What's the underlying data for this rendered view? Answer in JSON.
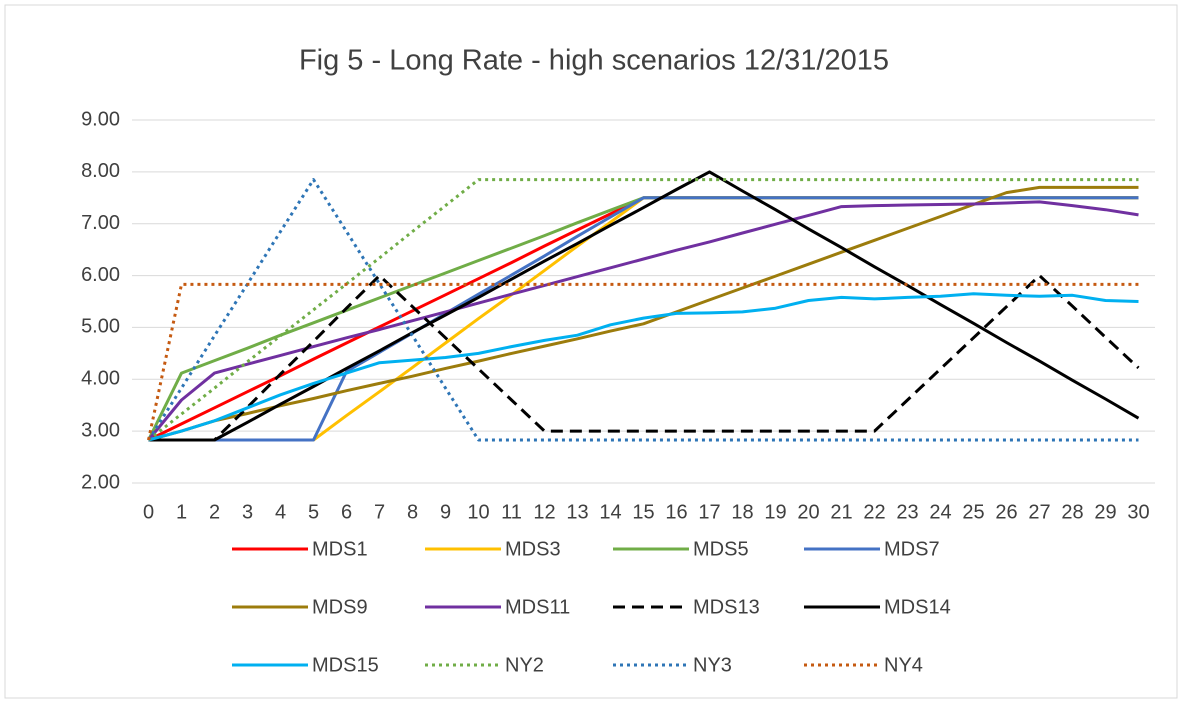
{
  "chart_data": {
    "type": "line",
    "title": "Fig 5 - Long Rate - high scenarios 12/31/2015",
    "categories": [
      "0",
      "1",
      "2",
      "3",
      "4",
      "5",
      "6",
      "7",
      "8",
      "9",
      "10",
      "11",
      "12",
      "13",
      "14",
      "15",
      "16",
      "17",
      "18",
      "19",
      "20",
      "21",
      "22",
      "23",
      "24",
      "25",
      "26",
      "27",
      "28",
      "29",
      "30"
    ],
    "ylim": [
      2,
      9
    ],
    "yticks": [
      {
        "value": 2,
        "label": "2.00"
      },
      {
        "value": 3,
        "label": "3.00"
      },
      {
        "value": 4,
        "label": "4.00"
      },
      {
        "value": 5,
        "label": "5.00"
      },
      {
        "value": 6,
        "label": "6.00"
      },
      {
        "value": 7,
        "label": "7.00"
      },
      {
        "value": 8,
        "label": "8.00"
      },
      {
        "value": 9,
        "label": "9.00"
      }
    ],
    "grid": true,
    "legend": "bottom",
    "series": [
      {
        "name": "MDS1",
        "color": "#ff0000",
        "dash": "solid",
        "values": [
          2.83,
          3.14,
          3.45,
          3.76,
          4.07,
          4.39,
          4.7,
          5.01,
          5.32,
          5.63,
          5.94,
          6.25,
          6.57,
          6.88,
          7.19,
          7.5,
          7.5,
          7.5,
          7.5,
          7.5,
          7.5,
          7.5,
          7.5,
          7.5,
          7.5,
          7.5,
          7.5,
          7.5,
          7.5,
          7.5,
          7.5
        ]
      },
      {
        "name": "MDS3",
        "color": "#ffc000",
        "dash": "solid",
        "values": [
          2.83,
          2.83,
          2.83,
          2.83,
          2.83,
          2.83,
          3.3,
          3.76,
          4.23,
          4.7,
          5.17,
          5.63,
          6.1,
          6.57,
          7.03,
          7.5,
          7.5,
          7.5,
          7.5,
          7.5,
          7.5,
          7.5,
          7.5,
          7.5,
          7.5,
          7.5,
          7.5,
          7.5,
          7.5,
          7.5,
          7.5
        ]
      },
      {
        "name": "MDS5",
        "color": "#70ad47",
        "dash": "solid",
        "values": [
          2.83,
          4.12,
          4.36,
          4.6,
          4.85,
          5.09,
          5.33,
          5.57,
          5.81,
          6.05,
          6.29,
          6.53,
          6.77,
          7.02,
          7.26,
          7.5,
          7.5,
          7.5,
          7.5,
          7.5,
          7.5,
          7.5,
          7.5,
          7.5,
          7.5,
          7.5,
          7.5,
          7.5,
          7.5,
          7.5,
          7.5
        ]
      },
      {
        "name": "MDS7",
        "color": "#4472c4",
        "dash": "solid",
        "values": [
          2.83,
          2.83,
          2.83,
          2.83,
          2.83,
          2.83,
          4.15,
          4.52,
          4.89,
          5.27,
          5.64,
          6.01,
          6.38,
          6.76,
          7.13,
          7.5,
          7.5,
          7.5,
          7.5,
          7.5,
          7.5,
          7.5,
          7.5,
          7.5,
          7.5,
          7.5,
          7.5,
          7.5,
          7.5,
          7.5,
          7.5
        ]
      },
      {
        "name": "MDS9",
        "color": "#9c7c0c",
        "dash": "solid",
        "values": [
          2.83,
          3.0,
          3.2,
          3.34,
          3.49,
          3.63,
          3.78,
          3.92,
          4.06,
          4.21,
          4.35,
          4.5,
          4.64,
          4.78,
          4.93,
          5.07,
          5.3,
          5.53,
          5.76,
          5.99,
          6.22,
          6.45,
          6.68,
          6.91,
          7.14,
          7.37,
          7.6,
          7.7,
          7.7,
          7.7,
          7.7
        ]
      },
      {
        "name": "MDS11",
        "color": "#7030a0",
        "dash": "solid",
        "values": [
          2.83,
          3.6,
          4.12,
          4.29,
          4.46,
          4.63,
          4.8,
          4.96,
          5.13,
          5.3,
          5.47,
          5.64,
          5.81,
          5.98,
          6.15,
          6.32,
          6.49,
          6.65,
          6.82,
          6.99,
          7.16,
          7.33,
          7.35,
          7.36,
          7.37,
          7.38,
          7.4,
          7.42,
          7.35,
          7.27,
          7.17
        ]
      },
      {
        "name": "MDS13",
        "color": "#000000",
        "dash": "dash",
        "values": [
          2.83,
          2.83,
          2.83,
          3.46,
          4.1,
          4.73,
          5.37,
          6.0,
          5.4,
          4.8,
          4.2,
          3.6,
          3.0,
          3.0,
          3.0,
          3.0,
          3.0,
          3.0,
          3.0,
          3.0,
          3.0,
          3.0,
          3.0,
          3.6,
          4.2,
          4.8,
          5.4,
          6.0,
          5.41,
          4.81,
          4.22
        ]
      },
      {
        "name": "MDS14",
        "color": "#000000",
        "dash": "solid",
        "values": [
          2.83,
          2.83,
          2.83,
          3.17,
          3.52,
          3.86,
          4.21,
          4.55,
          4.9,
          5.24,
          5.58,
          5.93,
          6.28,
          6.62,
          6.97,
          7.31,
          7.66,
          8.0,
          7.63,
          7.27,
          6.9,
          6.54,
          6.17,
          5.81,
          5.44,
          5.08,
          4.71,
          4.35,
          3.98,
          3.62,
          3.25
        ]
      },
      {
        "name": "MDS15",
        "color": "#00b0f0",
        "dash": "solid",
        "values": [
          2.83,
          3.0,
          3.2,
          3.45,
          3.7,
          3.92,
          4.12,
          4.32,
          4.37,
          4.42,
          4.5,
          4.63,
          4.75,
          4.85,
          5.05,
          5.18,
          5.27,
          5.28,
          5.3,
          5.37,
          5.52,
          5.58,
          5.55,
          5.58,
          5.6,
          5.65,
          5.62,
          5.6,
          5.62,
          5.52,
          5.5
        ]
      },
      {
        "name": "NY2",
        "color": "#70ad47",
        "dash": "dot",
        "values": [
          2.83,
          3.33,
          3.83,
          4.34,
          4.84,
          5.34,
          5.84,
          6.34,
          6.85,
          7.35,
          7.85,
          7.85,
          7.85,
          7.85,
          7.85,
          7.85,
          7.85,
          7.85,
          7.85,
          7.85,
          7.85,
          7.85,
          7.85,
          7.85,
          7.85,
          7.85,
          7.85,
          7.85,
          7.85,
          7.85,
          7.85
        ]
      },
      {
        "name": "NY3",
        "color": "#2e75b6",
        "dash": "dot",
        "values": [
          2.83,
          3.83,
          4.84,
          5.84,
          6.85,
          7.85,
          6.85,
          5.84,
          4.84,
          3.83,
          2.83,
          2.83,
          2.83,
          2.83,
          2.83,
          2.83,
          2.83,
          2.83,
          2.83,
          2.83,
          2.83,
          2.83,
          2.83,
          2.83,
          2.83,
          2.83,
          2.83,
          2.83,
          2.83,
          2.83,
          2.83
        ]
      },
      {
        "name": "NY4",
        "color": "#c55a11",
        "dash": "dot",
        "values": [
          2.83,
          5.83,
          5.83,
          5.83,
          5.83,
          5.83,
          5.83,
          5.83,
          5.83,
          5.83,
          5.83,
          5.83,
          5.83,
          5.83,
          5.83,
          5.83,
          5.83,
          5.83,
          5.83,
          5.83,
          5.83,
          5.83,
          5.83,
          5.83,
          5.83,
          5.83,
          5.83,
          5.83,
          5.83,
          5.83,
          5.83
        ]
      }
    ]
  }
}
